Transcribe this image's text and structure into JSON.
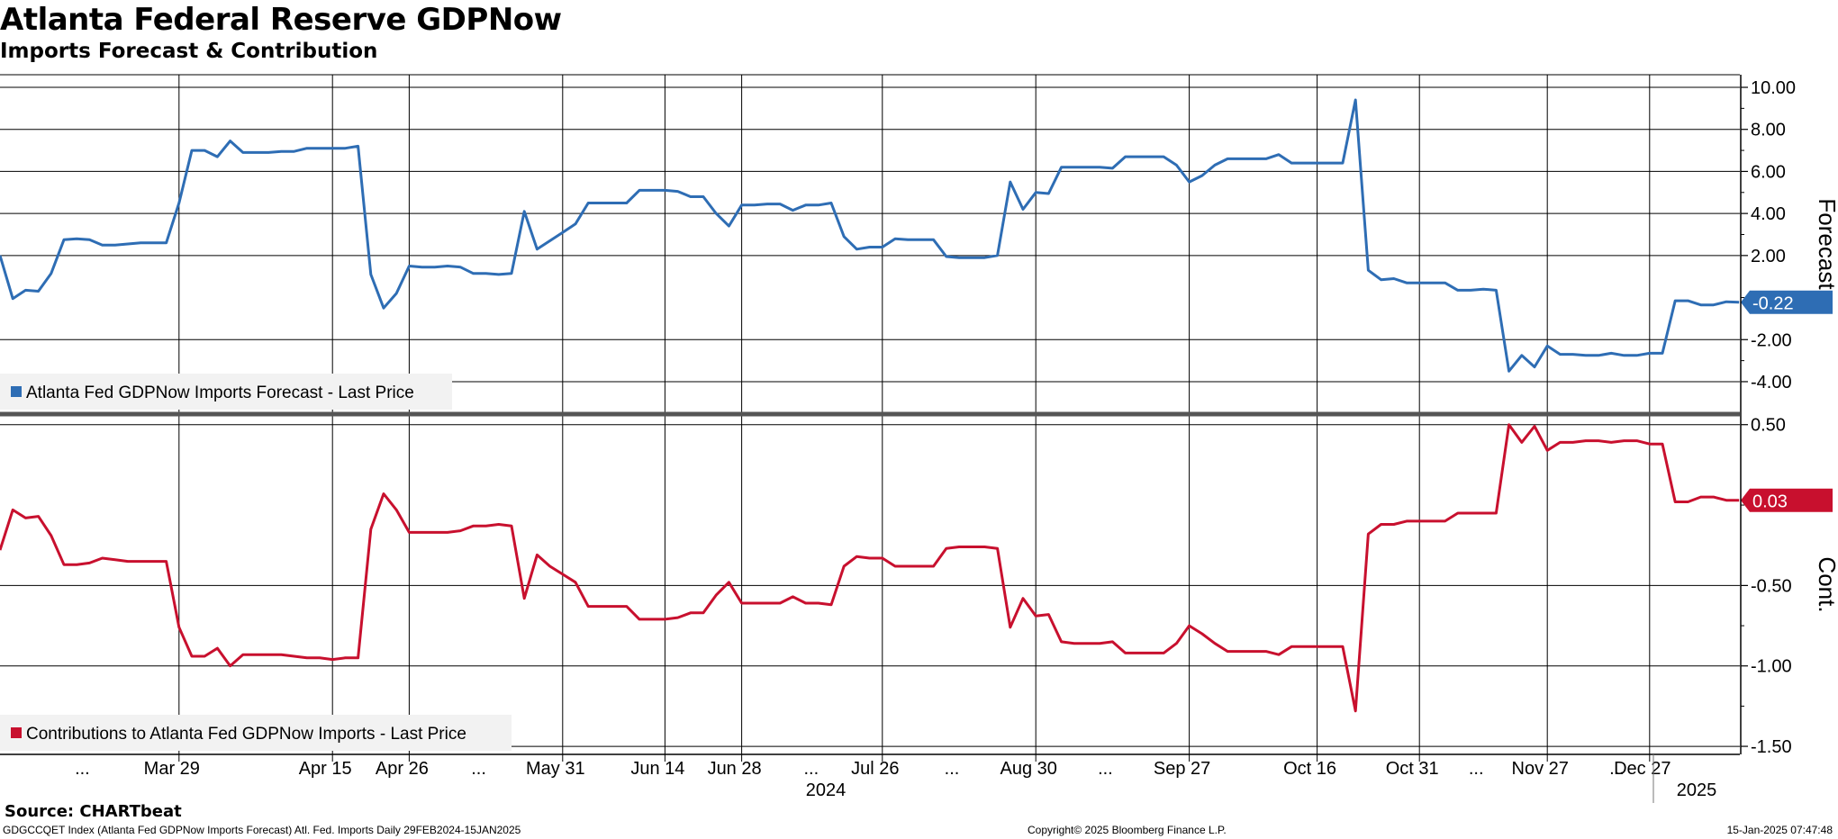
{
  "header": {
    "title": "Atlanta Federal Reserve GDPNow",
    "subtitle": "Imports Forecast & Contribution"
  },
  "footer": {
    "source": "Source: CHARTbeat",
    "description": "GDGCCQET Index (Atlanta Fed GDPNow Imports Forecast) Atl. Fed. Imports  Daily 29FEB2024-15JAN2025",
    "copyright": "Copyright© 2025 Bloomberg Finance L.P.",
    "timestamp": "15-Jan-2025 07:47:48"
  },
  "chart_data": [
    {
      "type": "line",
      "panel": "top",
      "axis_title": "Forecast",
      "legend": "Atlanta Fed GDPNow Imports Forecast - Last Price",
      "last_value_label": "-0.22",
      "color": "#2e6db4",
      "ylim": [
        -5.5,
        10.6
      ],
      "yticks": [
        10.0,
        8.0,
        6.0,
        4.0,
        2.0,
        -2.0,
        -4.0
      ],
      "ytick_labels": [
        "10.00",
        "8.00",
        "6.00",
        "4.00",
        "2.00",
        "-2.00",
        "-4.00"
      ],
      "grid": true,
      "series": [
        {
          "values": [
            2.0,
            -0.05,
            0.35,
            0.3,
            1.15,
            2.75,
            2.8,
            2.75,
            2.5,
            2.5,
            2.55,
            2.6,
            2.6,
            2.6,
            4.5,
            7.0,
            7.0,
            6.7,
            7.45,
            6.9,
            6.9,
            6.9,
            6.95,
            6.95,
            7.1,
            7.1,
            7.1,
            7.1,
            7.2,
            1.1,
            -0.5,
            0.2,
            1.5,
            1.45,
            1.45,
            1.5,
            1.45,
            1.15,
            1.15,
            1.1,
            1.15,
            4.1,
            2.3,
            2.7,
            3.1,
            3.5,
            4.5,
            4.5,
            4.5,
            4.5,
            5.1,
            5.1,
            5.1,
            5.05,
            4.8,
            4.8,
            4.0,
            3.4,
            4.4,
            4.4,
            4.45,
            4.45,
            4.15,
            4.4,
            4.4,
            4.5,
            2.9,
            2.3,
            2.4,
            2.4,
            2.8,
            2.75,
            2.75,
            2.75,
            1.95,
            1.9,
            1.9,
            1.9,
            2.0,
            5.5,
            4.2,
            5.0,
            4.95,
            6.2,
            6.2,
            6.2,
            6.2,
            6.15,
            6.7,
            6.7,
            6.7,
            6.7,
            6.3,
            5.5,
            5.8,
            6.3,
            6.6,
            6.6,
            6.6,
            6.6,
            6.8,
            6.4,
            6.4,
            6.4,
            6.4,
            6.4,
            9.4,
            1.3,
            0.85,
            0.9,
            0.7,
            0.7,
            0.7,
            0.7,
            0.35,
            0.35,
            0.4,
            0.35,
            -3.5,
            -2.75,
            -3.3,
            -2.3,
            -2.7,
            -2.7,
            -2.75,
            -2.75,
            -2.65,
            -2.75,
            -2.75,
            -2.65,
            -2.65,
            -0.15,
            -0.15,
            -0.35,
            -0.35,
            -0.2,
            -0.22
          ]
        }
      ]
    },
    {
      "type": "line",
      "panel": "bottom",
      "axis_title": "Cont.",
      "legend": "Contributions to Atlanta Fed GDPNow Imports - Last Price",
      "last_value_label": "0.03",
      "color": "#c8102e",
      "ylim": [
        -1.55,
        0.56
      ],
      "yticks": [
        0.5,
        -0.5,
        -1.0,
        -1.5
      ],
      "ytick_labels": [
        "0.50",
        "-0.50",
        "-1.00",
        "-1.50"
      ],
      "grid": true,
      "series": [
        {
          "values": [
            -0.28,
            -0.03,
            -0.08,
            -0.07,
            -0.19,
            -0.37,
            -0.37,
            -0.36,
            -0.33,
            -0.34,
            -0.35,
            -0.35,
            -0.35,
            -0.35,
            -0.76,
            -0.94,
            -0.94,
            -0.89,
            -1.0,
            -0.93,
            -0.93,
            -0.93,
            -0.93,
            -0.94,
            -0.95,
            -0.95,
            -0.96,
            -0.95,
            -0.95,
            -0.15,
            0.07,
            -0.03,
            -0.17,
            -0.17,
            -0.17,
            -0.17,
            -0.16,
            -0.13,
            -0.13,
            -0.12,
            -0.13,
            -0.58,
            -0.31,
            -0.38,
            -0.43,
            -0.48,
            -0.63,
            -0.63,
            -0.63,
            -0.63,
            -0.71,
            -0.71,
            -0.71,
            -0.7,
            -0.67,
            -0.67,
            -0.56,
            -0.48,
            -0.61,
            -0.61,
            -0.61,
            -0.61,
            -0.57,
            -0.61,
            -0.61,
            -0.62,
            -0.38,
            -0.32,
            -0.33,
            -0.33,
            -0.38,
            -0.38,
            -0.38,
            -0.38,
            -0.27,
            -0.26,
            -0.26,
            -0.26,
            -0.27,
            -0.76,
            -0.58,
            -0.69,
            -0.68,
            -0.85,
            -0.86,
            -0.86,
            -0.86,
            -0.85,
            -0.92,
            -0.92,
            -0.92,
            -0.92,
            -0.86,
            -0.75,
            -0.8,
            -0.86,
            -0.91,
            -0.91,
            -0.91,
            -0.91,
            -0.93,
            -0.88,
            -0.88,
            -0.88,
            -0.88,
            -0.88,
            -1.28,
            -0.18,
            -0.12,
            -0.12,
            -0.1,
            -0.1,
            -0.1,
            -0.1,
            -0.05,
            -0.05,
            -0.05,
            -0.05,
            0.5,
            0.39,
            0.49,
            0.34,
            0.39,
            0.39,
            0.4,
            0.4,
            0.39,
            0.4,
            0.4,
            0.38,
            0.38,
            0.02,
            0.02,
            0.05,
            0.05,
            0.03,
            0.03
          ]
        }
      ]
    }
  ],
  "x_axis": {
    "period": "29FEB2024-15JAN2025",
    "gridline_index": [
      14,
      26,
      32,
      44,
      52,
      58,
      69,
      81,
      93,
      103,
      111,
      121,
      129
    ],
    "tick_labels": [
      {
        "text": "...",
        "at_index": 7
      },
      {
        "text": "Mar 29",
        "at_index": 14
      },
      {
        "text": "Apr 15",
        "at_index": 26
      },
      {
        "text": "Apr 26",
        "at_index": 32
      },
      {
        "text": "...",
        "at_index": 38
      },
      {
        "text": "May 31",
        "at_index": 44
      },
      {
        "text": "Jun 14",
        "at_index": 52
      },
      {
        "text": "Jun 28",
        "at_index": 58
      },
      {
        "text": "...",
        "at_index": 64
      },
      {
        "text": "Jul 26",
        "at_index": 69
      },
      {
        "text": "...",
        "at_index": 75
      },
      {
        "text": "Aug 30",
        "at_index": 81
      },
      {
        "text": "...",
        "at_index": 87
      },
      {
        "text": "Sep 27",
        "at_index": 93
      },
      {
        "text": "Oct 16",
        "at_index": 103
      },
      {
        "text": "Oct 31",
        "at_index": 111
      },
      {
        "text": "...",
        "at_index": 116
      },
      {
        "text": "Nov 27",
        "at_index": 121
      },
      {
        "text": "...",
        "at_index": 127
      },
      {
        "text": "Dec 27",
        "at_index": 129
      }
    ],
    "year_labels": [
      {
        "text": "2024",
        "at_index": 64
      },
      {
        "text": "2025",
        "at_index": 133
      }
    ]
  }
}
